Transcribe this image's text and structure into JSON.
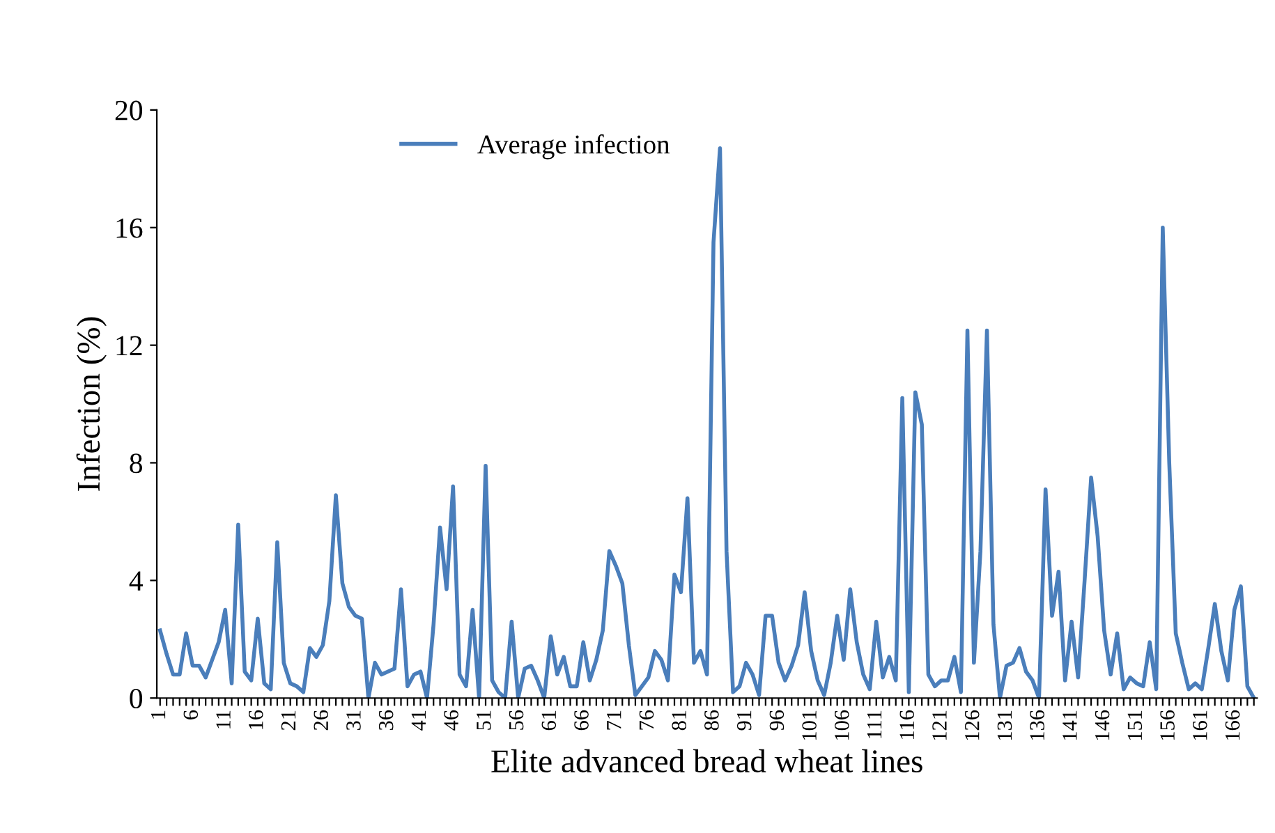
{
  "chart_data": {
    "type": "line",
    "xlabel": "Elite advanced bread wheat lines",
    "ylabel": "Infection (%)",
    "legend": "top left",
    "grid": false,
    "marker": "none",
    "line_style": "solid",
    "ylim": [
      0,
      20
    ],
    "yticks": [
      0,
      4,
      8,
      12,
      16,
      20
    ],
    "categories": [
      "1",
      null,
      null,
      null,
      null,
      "6",
      null,
      null,
      null,
      null,
      "11",
      null,
      null,
      null,
      null,
      "16",
      null,
      null,
      null,
      null,
      "21",
      null,
      null,
      null,
      null,
      "26",
      null,
      null,
      null,
      null,
      "31",
      null,
      null,
      null,
      null,
      "36",
      null,
      null,
      null,
      null,
      "41",
      null,
      null,
      null,
      null,
      "46",
      null,
      null,
      null,
      null,
      "51",
      null,
      null,
      null,
      null,
      "56",
      null,
      null,
      null,
      null,
      "61",
      null,
      null,
      null,
      null,
      "66",
      null,
      null,
      null,
      null,
      "71",
      null,
      null,
      null,
      null,
      "76",
      null,
      null,
      null,
      null,
      "81",
      null,
      null,
      null,
      null,
      "86",
      null,
      null,
      null,
      null,
      "91",
      null,
      null,
      null,
      null,
      "96",
      null,
      null,
      null,
      null,
      "101",
      null,
      null,
      null,
      null,
      "106",
      null,
      null,
      null,
      null,
      "111",
      null,
      null,
      null,
      null,
      "116",
      null,
      null,
      null,
      null,
      "121",
      null,
      null,
      null,
      null,
      "126",
      null,
      null,
      null,
      null,
      "131",
      null,
      null,
      null,
      null,
      "136",
      null,
      null,
      null,
      null,
      "141",
      null,
      null,
      null,
      null,
      "146",
      null,
      null,
      null,
      null,
      "151",
      null,
      null,
      null,
      null,
      "156",
      null,
      null,
      null,
      null,
      "161",
      null,
      null,
      null,
      null,
      "166",
      null,
      null,
      null
    ],
    "series": [
      {
        "name": "Average infection",
        "color": "#4a7ebb",
        "values": [
          2.3,
          1.5,
          0.8,
          0.8,
          2.2,
          1.1,
          1.1,
          0.7,
          1.3,
          1.9,
          3.0,
          0.5,
          5.9,
          0.9,
          0.6,
          2.7,
          0.5,
          0.3,
          5.3,
          1.2,
          0.5,
          0.4,
          0.2,
          1.7,
          1.4,
          1.8,
          3.3,
          6.9,
          3.9,
          3.1,
          2.8,
          2.7,
          0,
          1.2,
          0.8,
          0.9,
          1.0,
          3.7,
          0.4,
          0.8,
          0.9,
          0,
          2.5,
          5.8,
          3.7,
          7.2,
          0.8,
          0.4,
          3.0,
          0,
          7.9,
          0.6,
          0.2,
          0,
          2.6,
          0,
          1.0,
          1.1,
          0.6,
          0,
          2.1,
          0.8,
          1.4,
          0.4,
          0.4,
          1.9,
          0.6,
          1.3,
          2.3,
          5.0,
          4.5,
          3.9,
          1.8,
          0.1,
          0.4,
          0.7,
          1.6,
          1.3,
          0.6,
          4.2,
          3.6,
          6.8,
          1.2,
          1.6,
          0.8,
          15.5,
          18.7,
          5.0,
          0.2,
          0.4,
          1.2,
          0.8,
          0.1,
          2.8,
          2.8,
          1.2,
          0.6,
          1.1,
          1.8,
          3.6,
          1.6,
          0.6,
          0.1,
          1.2,
          2.8,
          1.3,
          3.7,
          1.9,
          0.8,
          0.3,
          2.6,
          0.7,
          1.4,
          0.6,
          10.2,
          0.2,
          10.4,
          9.3,
          0.8,
          0.4,
          0.6,
          0.6,
          1.4,
          0.2,
          12.5,
          1.2,
          5.0,
          12.5,
          2.5,
          0,
          1.1,
          1.2,
          1.7,
          0.9,
          0.6,
          0,
          7.1,
          2.8,
          4.3,
          0.6,
          2.6,
          0.7,
          4.0,
          7.5,
          5.5,
          2.3,
          0.8,
          2.2,
          0.3,
          0.7,
          0.5,
          0.4,
          1.9,
          0.3,
          16.0,
          8.0,
          2.2,
          1.2,
          0.3,
          0.5,
          0.3,
          1.7,
          3.2,
          1.6,
          0.6,
          3.0,
          3.8,
          0.4,
          0
        ]
      }
    ]
  }
}
